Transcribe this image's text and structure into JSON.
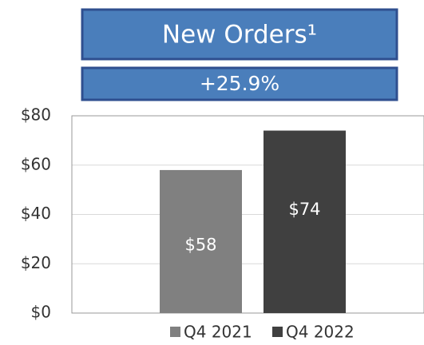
{
  "chart_data": {
    "type": "bar",
    "title": "New Orders¹",
    "subtitle": "+25.9%",
    "categories": [
      null
    ],
    "series": [
      {
        "name": "Q4 2021",
        "color": "#808080",
        "values": [
          58
        ],
        "value_labels": [
          "$58"
        ]
      },
      {
        "name": "Q4 2022",
        "color": "#404040",
        "values": [
          74
        ],
        "value_labels": [
          "$74"
        ]
      }
    ],
    "ylim": [
      0,
      80
    ],
    "yticks": [
      {
        "value": 0,
        "label": "$0"
      },
      {
        "value": 20,
        "label": "$20"
      },
      {
        "value": 40,
        "label": "$40"
      },
      {
        "value": 60,
        "label": "$60"
      },
      {
        "value": 80,
        "label": "$80"
      }
    ],
    "grid": true,
    "legend": "bottom"
  }
}
